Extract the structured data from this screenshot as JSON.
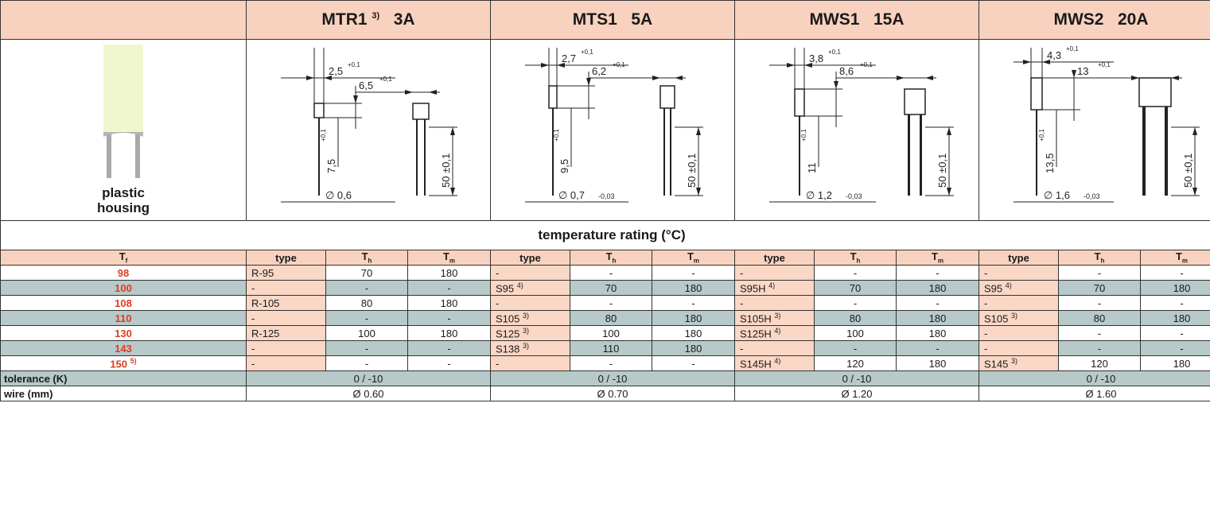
{
  "header": {
    "models": [
      {
        "name": "MTR1",
        "sup": "3)",
        "rating": "3A"
      },
      {
        "name": "MTS1",
        "sup": "",
        "rating": "5A"
      },
      {
        "name": "MWS1",
        "sup": "",
        "rating": "15A"
      },
      {
        "name": "MWS2",
        "sup": "",
        "rating": "20A"
      }
    ]
  },
  "image": {
    "label_line1": "plastic",
    "label_line2": "housing"
  },
  "drawings": [
    {
      "top": "2,5",
      "top_tol": "+0,1",
      "side": "6,5",
      "side_tol": "+0,1",
      "leg": "7,5",
      "leg_tol": "+0,1",
      "length": "50 ±0,1",
      "dia": "∅ 0,6",
      "dia_tol": ""
    },
    {
      "top": "2,7",
      "top_tol": "+0,1",
      "side": "6,2",
      "side_tol": "+0,1",
      "leg": "9,5",
      "leg_tol": "+0,1",
      "length": "50 ±0,1",
      "dia": "∅ 0,7",
      "dia_tol": "-0,03"
    },
    {
      "top": "3,8",
      "top_tol": "+0,1",
      "side": "8,6",
      "side_tol": "+0,1",
      "leg": "11",
      "leg_tol": "+0,1",
      "length": "50 ±0,1",
      "dia": "∅ 1,2",
      "dia_tol": "-0,03"
    },
    {
      "top": "4,3",
      "top_tol": "+0,1",
      "side": "13",
      "side_tol": "+0,1",
      "leg": "13,5",
      "leg_tol": "+0,1",
      "length": "50 ±0,1",
      "dia": "∅ 1,6",
      "dia_tol": "-0,03"
    }
  ],
  "section_title": "temperature rating (°C)",
  "col_headers": {
    "tf": "T",
    "tf_sub": "f",
    "type": "type",
    "th": "T",
    "th_sub": "h",
    "tm": "T",
    "tm_sub": "m"
  },
  "rows": [
    {
      "tf": "98",
      "tf_sup": "",
      "cells": [
        [
          "R-95",
          "",
          "70",
          "180"
        ],
        [
          "-",
          "",
          "-",
          "-"
        ],
        [
          "-",
          "",
          "-",
          "-"
        ],
        [
          "-",
          "",
          "-",
          "-"
        ]
      ]
    },
    {
      "tf": "100",
      "tf_sup": "",
      "cells": [
        [
          "-",
          "",
          "-",
          "-"
        ],
        [
          "S95",
          "4)",
          "70",
          "180"
        ],
        [
          "S95H",
          "4)",
          "70",
          "180"
        ],
        [
          "S95",
          "4)",
          "70",
          "180"
        ]
      ]
    },
    {
      "tf": "108",
      "tf_sup": "",
      "cells": [
        [
          "R-105",
          "",
          "80",
          "180"
        ],
        [
          "-",
          "",
          "-",
          "-"
        ],
        [
          "-",
          "",
          "-",
          "-"
        ],
        [
          "-",
          "",
          "-",
          "-"
        ]
      ]
    },
    {
      "tf": "110",
      "tf_sup": "",
      "cells": [
        [
          "-",
          "",
          "-",
          "-"
        ],
        [
          "S105",
          "3)",
          "80",
          "180"
        ],
        [
          "S105H",
          "3)",
          "80",
          "180"
        ],
        [
          "S105",
          "3)",
          "80",
          "180"
        ]
      ]
    },
    {
      "tf": "130",
      "tf_sup": "",
      "cells": [
        [
          "R-125",
          "",
          "100",
          "180"
        ],
        [
          "S125",
          "3)",
          "100",
          "180"
        ],
        [
          "S125H",
          "4)",
          "100",
          "180"
        ],
        [
          "-",
          "",
          "-",
          "-"
        ]
      ]
    },
    {
      "tf": "143",
      "tf_sup": "",
      "cells": [
        [
          "-",
          "",
          "-",
          "-"
        ],
        [
          "S138",
          "3)",
          "110",
          "180"
        ],
        [
          "-",
          "",
          "-",
          "-"
        ],
        [
          "-",
          "",
          "-",
          "-"
        ]
      ]
    },
    {
      "tf": "150",
      "tf_sup": "5)",
      "cells": [
        [
          "-",
          "",
          "-",
          "-"
        ],
        [
          "-",
          "",
          "-",
          "-"
        ],
        [
          "S145H",
          "4)",
          "120",
          "180"
        ],
        [
          "S145",
          "3)",
          "120",
          "180"
        ]
      ]
    }
  ],
  "footer": {
    "tolerance_label": "tolerance (K)",
    "tolerance_values": [
      "0 / -10",
      "0 / -10",
      "0 / -10",
      "0 / -10"
    ],
    "wire_label": "wire (mm)",
    "wire_values": [
      "Ø 0.60",
      "Ø 0.70",
      "Ø 1.20",
      "Ø 1.60"
    ]
  },
  "colors": {
    "header_fill": "#f9d2bf",
    "grey_row": "#b7c9c9",
    "tf_red": "#e03c1f",
    "part_body": "#f0f7cf"
  }
}
